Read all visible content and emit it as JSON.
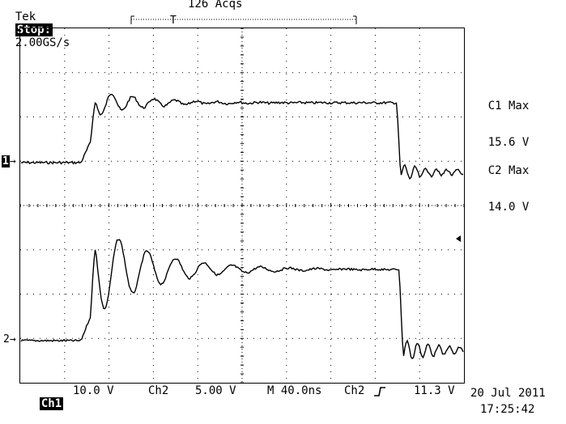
{
  "header": {
    "brand": "Tek",
    "state": "Stop:",
    "sample_rate": "2.00GS/s",
    "acquisitions": "126 Acqs"
  },
  "trigger_position_label": "T",
  "measurements": [
    {
      "name": "C1 Max",
      "value": "15.6 V"
    },
    {
      "name": "C2 Max",
      "value": "14.0 V"
    }
  ],
  "channel_markers": {
    "ch1": "1",
    "ch2": "2"
  },
  "status_bar": {
    "ch1_label": "Ch1",
    "ch1_scale": "10.0 V",
    "ch2_label": "Ch2",
    "ch2_scale": "5.00 V",
    "timebase": "M 40.0ns",
    "trigger_source": "Ch2",
    "trigger_slope_icon": "rising-edge-icon",
    "trigger_level": "11.3 V",
    "date": "20 Jul 2011",
    "time": "17:25:42"
  },
  "colors": {
    "trace": "#000000",
    "graticule": "#000000",
    "background": "#ffffff"
  }
}
